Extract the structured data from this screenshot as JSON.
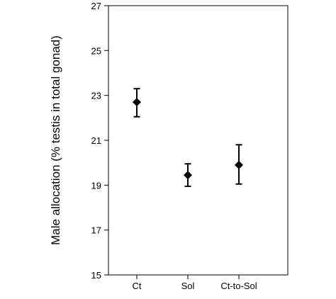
{
  "chart_data": {
    "type": "scatter",
    "title": "",
    "xlabel": "",
    "ylabel": "Male allocation (% testis in total gonad)",
    "categories": [
      "Ct",
      "Sol",
      "Ct-to-Sol"
    ],
    "ylim": [
      15,
      27
    ],
    "yticks": [
      15,
      17,
      19,
      21,
      23,
      25,
      27
    ],
    "grid": false,
    "legend": "none",
    "marker": "diamond",
    "marker_color": "#000000",
    "series": [
      {
        "values": [
          22.7,
          19.45,
          19.9
        ],
        "error_low": [
          22.05,
          18.95,
          19.05
        ],
        "error_high": [
          23.3,
          19.95,
          20.8
        ]
      }
    ]
  }
}
